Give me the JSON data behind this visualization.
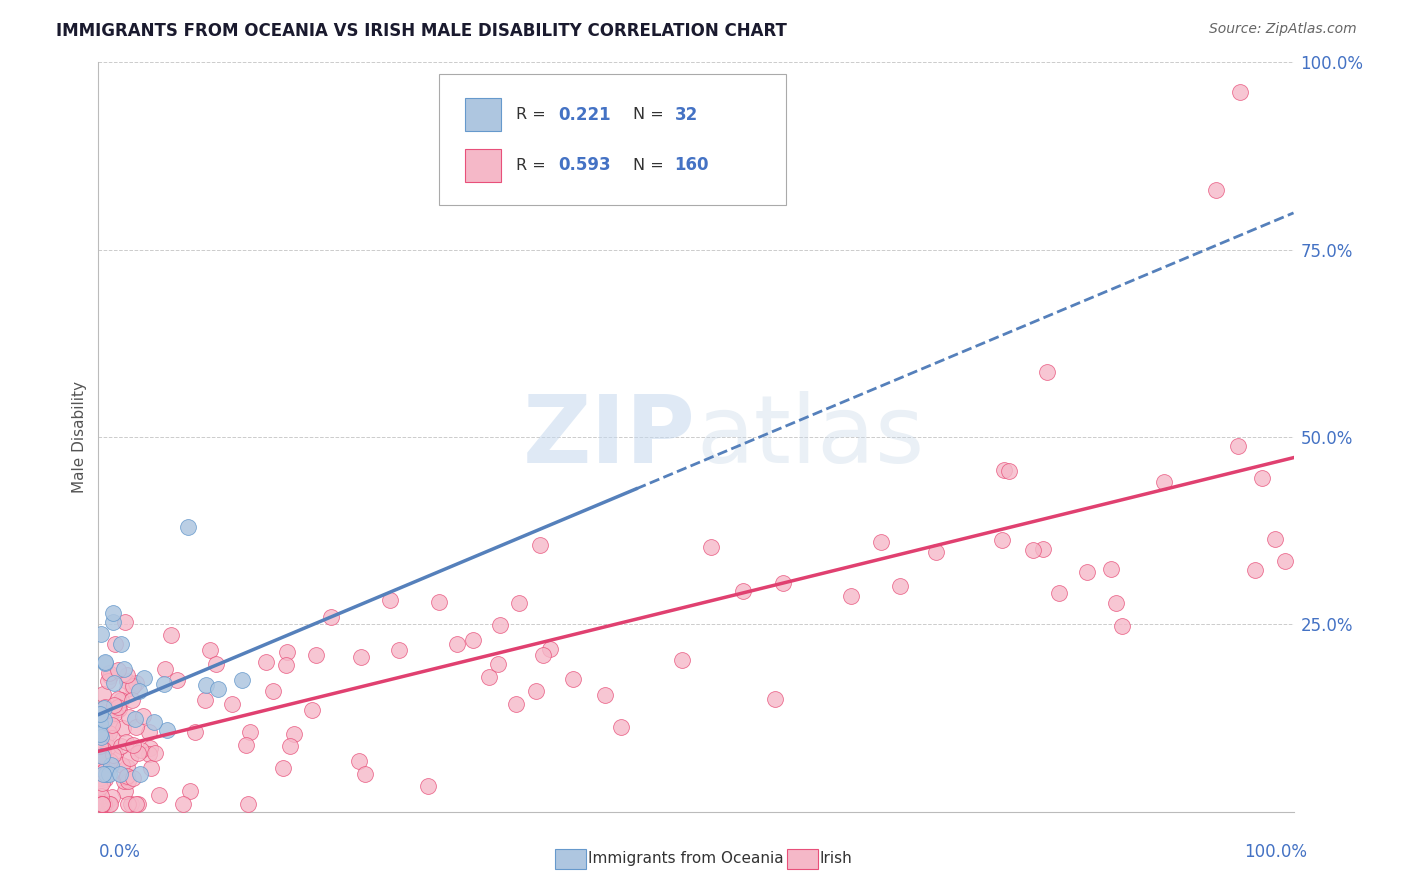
{
  "title": "IMMIGRANTS FROM OCEANIA VS IRISH MALE DISABILITY CORRELATION CHART",
  "source": "Source: ZipAtlas.com",
  "ylabel": "Male Disability",
  "r_blue": 0.221,
  "n_blue": 32,
  "r_pink": 0.593,
  "n_pink": 160,
  "blue_scatter_color": "#aec6e0",
  "blue_edge_color": "#6699cc",
  "pink_scatter_color": "#f5b8c8",
  "pink_edge_color": "#e8507a",
  "blue_line_color": "#5580bb",
  "pink_line_color": "#e04070",
  "watermark_color": "#d0dff0",
  "grid_color": "#cccccc",
  "background_color": "#ffffff",
  "right_tick_color": "#4472c4",
  "title_color": "#1a1a2e",
  "source_color": "#666666",
  "legend_text_color": "#333333",
  "ytick_labels": [
    "100.0%",
    "75.0%",
    "50.0%",
    "25.0%"
  ],
  "ytick_values": [
    1.0,
    0.75,
    0.5,
    0.25
  ]
}
